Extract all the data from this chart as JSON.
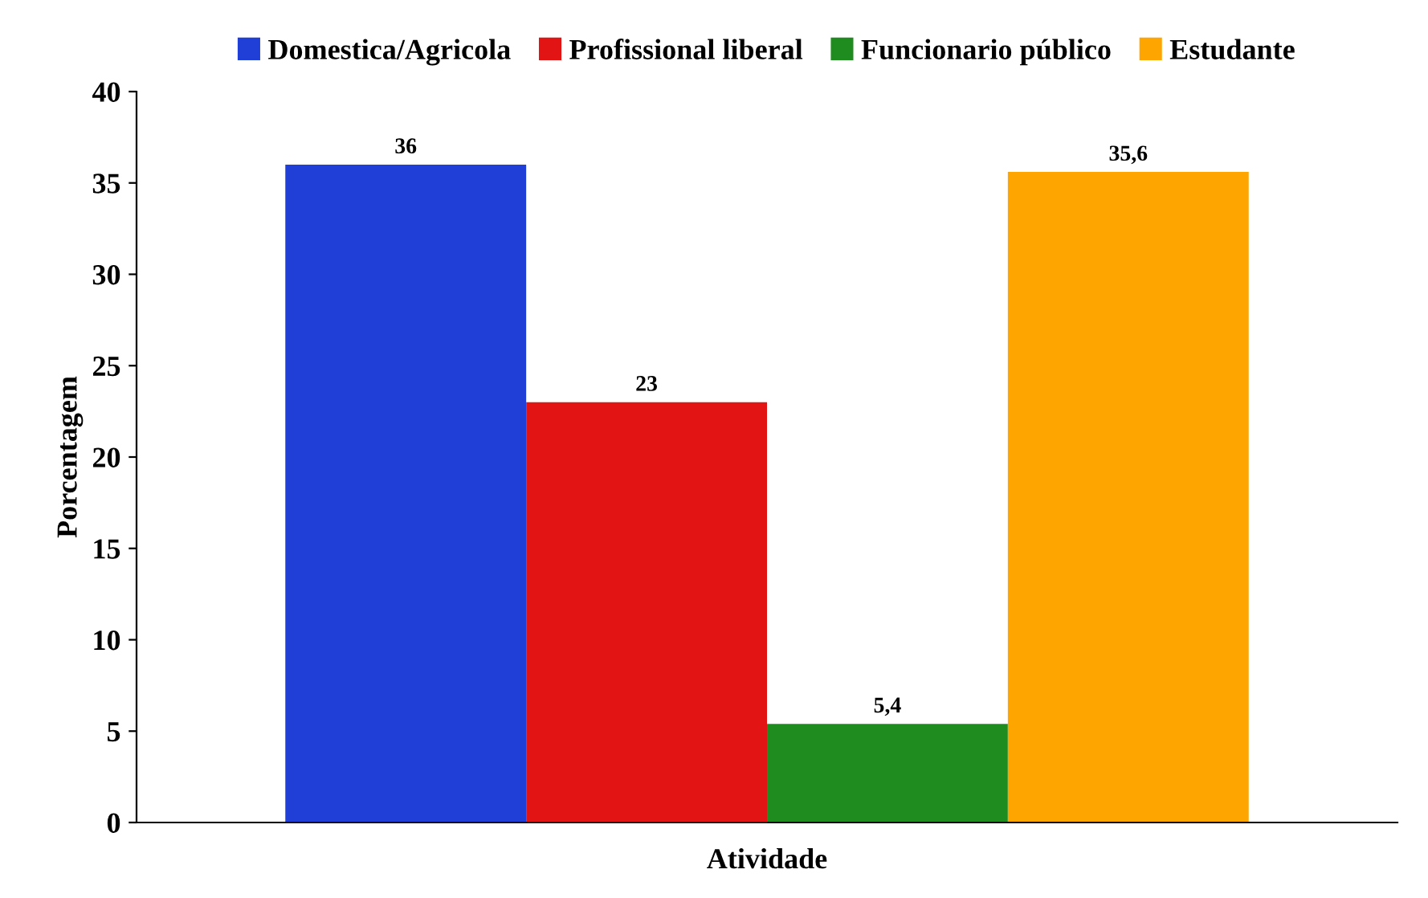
{
  "chart_data": {
    "type": "bar",
    "xlabel": "Atividade",
    "ylabel": "Porcentagem",
    "categories": [
      null
    ],
    "series": [
      {
        "name": "Domestica/Agricola",
        "color": "#1f3fd6",
        "values": [
          36
        ],
        "value_labels": [
          "36"
        ]
      },
      {
        "name": "Profissional liberal",
        "color": "#e31414",
        "values": [
          23
        ],
        "value_labels": [
          "23"
        ]
      },
      {
        "name": "Funcionario público",
        "color": "#1e8c1e",
        "values": [
          5.4
        ],
        "value_labels": [
          "5,4"
        ]
      },
      {
        "name": "Estudante",
        "color": "#ffa500",
        "values": [
          35.6
        ],
        "value_labels": [
          "35,6"
        ]
      }
    ],
    "ylim": [
      0,
      40
    ],
    "yticks": [
      0,
      5,
      10,
      15,
      20,
      25,
      30,
      35,
      40
    ],
    "grid": false,
    "legend": "top"
  }
}
